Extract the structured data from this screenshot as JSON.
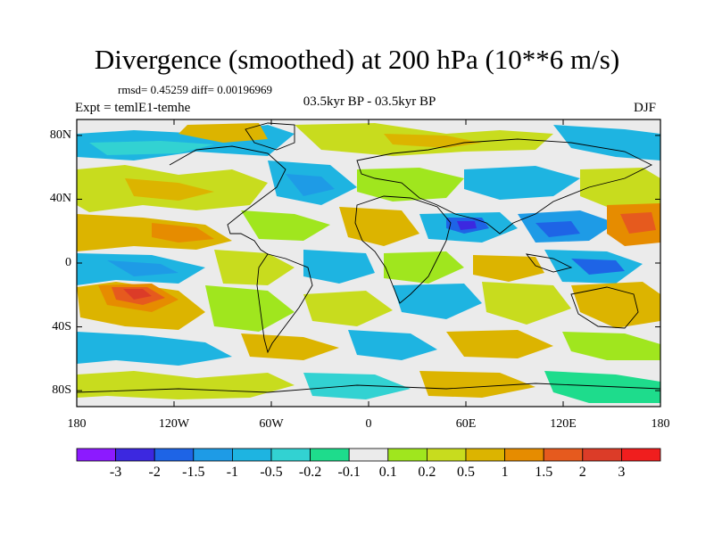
{
  "title": "Divergence (smoothed) at 200 hPa (10**6 m/s)",
  "stats_text": "rmsd= 0.45259 diff= 0.00196969",
  "experiment": "Expt = temlE1-temhe",
  "period": "03.5kyr BP - 03.5kyr BP",
  "season": "DJF",
  "map": {
    "projection": "cylindrical equidistant",
    "lon_range": [
      -180,
      180
    ],
    "lat_range": [
      -90,
      90
    ],
    "lat_ticks": [
      {
        "value": 80,
        "label": "80N"
      },
      {
        "value": 40,
        "label": "40N"
      },
      {
        "value": 0,
        "label": "0"
      },
      {
        "value": -40,
        "label": "40S"
      },
      {
        "value": -80,
        "label": "80S"
      }
    ],
    "lon_ticks": [
      {
        "value": -180,
        "label": "180"
      },
      {
        "value": -120,
        "label": "120W"
      },
      {
        "value": -60,
        "label": "60W"
      },
      {
        "value": 0,
        "label": "0"
      },
      {
        "value": 60,
        "label": "60E"
      },
      {
        "value": 120,
        "label": "120E"
      },
      {
        "value": 180,
        "label": "180"
      }
    ]
  },
  "colorbar": {
    "colors": [
      "#8c1aff",
      "#3c28e0",
      "#1e64e6",
      "#1e9be6",
      "#1eb4e1",
      "#32d2d2",
      "#1edc8c",
      "#ebebeb",
      "#a0e61e",
      "#c8dc1e",
      "#dcb400",
      "#e68c00",
      "#e65a1e",
      "#dc3c28",
      "#f01e1e"
    ],
    "labels": [
      "-3",
      "-2",
      "-1.5",
      "-1",
      "-0.5",
      "-0.2",
      "-0.1",
      "0.1",
      "0.2",
      "0.5",
      "1",
      "1.5",
      "2",
      "3"
    ]
  }
}
